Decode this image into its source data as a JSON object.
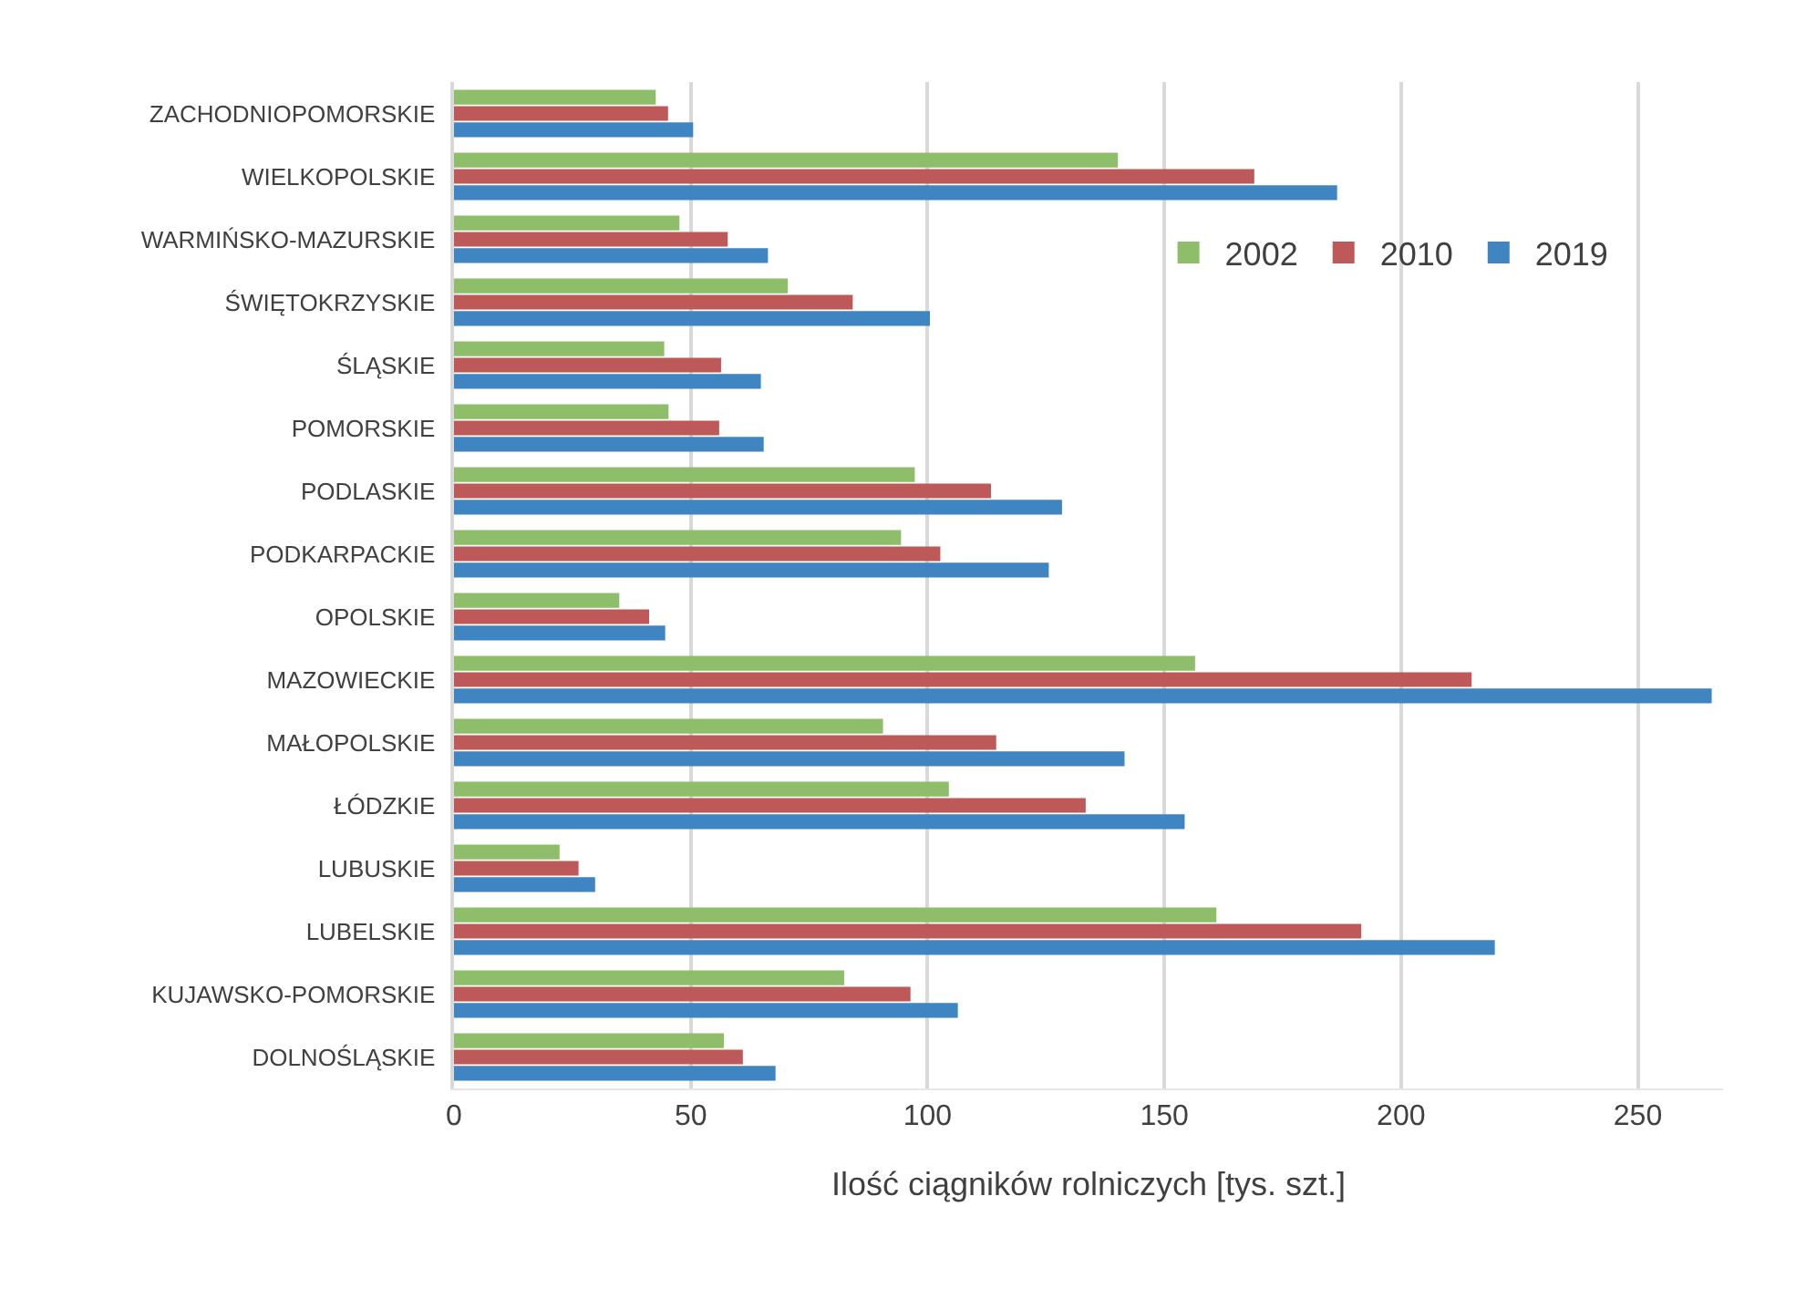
{
  "chart_data": {
    "type": "bar",
    "orientation": "horizontal",
    "xlabel": "Ilość ciągników rolniczych [tys. szt.]",
    "categories": [
      "ZACHODNIOPOMORSKIE",
      "WIELKOPOLSKIE",
      "WARMIŃSKO-MAZURSKIE",
      "ŚWIĘTOKRZYSKIE",
      "ŚLĄSKIE",
      "POMORSKIE",
      "PODLASKIE",
      "PODKARPACKIE",
      "OPOLSKIE",
      "MAZOWIECKIE",
      "MAŁOPOLSKIE",
      "ŁÓDZKIE",
      "LUBUSKIE",
      "LUBELSKIE",
      "KUJAWSKO-POMORSKIE",
      "DOLNOŚLĄSKIE"
    ],
    "series": [
      {
        "name": "2002",
        "color": "#8fbe6a",
        "values": [
          42.6,
          140.2,
          47.6,
          70.5,
          44.4,
          45.3,
          97.3,
          94.4,
          34.9,
          156.5,
          90.6,
          104.5,
          22.3,
          161,
          82.4,
          57
        ]
      },
      {
        "name": "2010",
        "color": "#bd5a59",
        "values": [
          45.2,
          169,
          57.8,
          84.2,
          56.4,
          56,
          113.4,
          102.7,
          41.2,
          214.9,
          114.5,
          133.4,
          26.3,
          191.6,
          96.4,
          61
        ]
      },
      {
        "name": "2019",
        "color": "#3f85c2",
        "values": [
          50.5,
          186.5,
          66.3,
          100.5,
          64.8,
          65.4,
          128.4,
          125.6,
          44.6,
          265.6,
          141.6,
          154.3,
          29.8,
          219.8,
          106.4,
          67.9
        ]
      }
    ],
    "xlim": [
      0,
      268
    ],
    "xticks": [
      0,
      50,
      100,
      150,
      200,
      250
    ],
    "grid": "x",
    "legend": "top right"
  }
}
